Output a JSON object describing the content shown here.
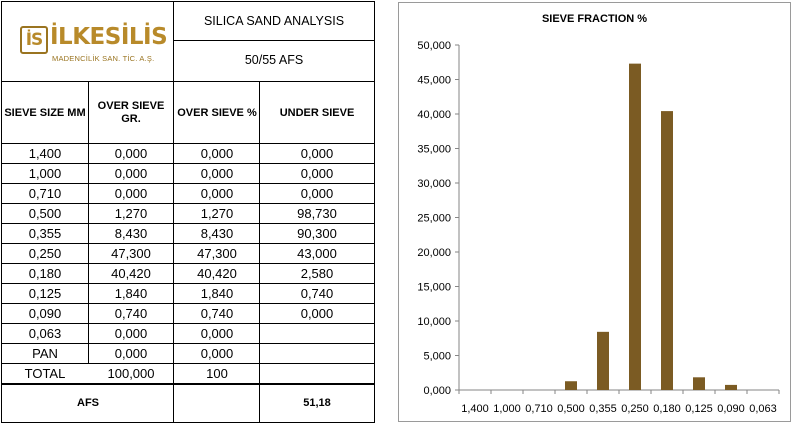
{
  "logo": {
    "badge": "İS",
    "word": "İLKESİLİS",
    "subtitle": "MADENCİLİK SAN. TİC. A.Ş."
  },
  "sheet": {
    "title": "SILICA SAND ANALYSIS",
    "subtitle": "50/55 AFS",
    "headers": [
      "SIEVE SIZE MM",
      "OVER SIEVE GR.",
      "OVER SIEVE %",
      "UNDER SIEVE"
    ],
    "rows": [
      [
        "1,400",
        "0,000",
        "0,000",
        "0,000"
      ],
      [
        "1,000",
        "0,000",
        "0,000",
        "0,000"
      ],
      [
        "0,710",
        "0,000",
        "0,000",
        "0,000"
      ],
      [
        "0,500",
        "1,270",
        "1,270",
        "98,730"
      ],
      [
        "0,355",
        "8,430",
        "8,430",
        "90,300"
      ],
      [
        "0,250",
        "47,300",
        "47,300",
        "43,000"
      ],
      [
        "0,180",
        "40,420",
        "40,420",
        "2,580"
      ],
      [
        "0,125",
        "1,840",
        "1,840",
        "0,740"
      ],
      [
        "0,090",
        "0,740",
        "0,740",
        "0,000"
      ],
      [
        "0,063",
        "0,000",
        "0,000",
        ""
      ],
      [
        "PAN",
        "0,000",
        "0,000",
        ""
      ],
      [
        "TOTAL",
        "100,000",
        "100",
        ""
      ]
    ],
    "afs_label": "AFS",
    "afs_value": "51,18"
  },
  "chart_data": {
    "type": "bar",
    "title": "SIEVE FRACTION %",
    "categories": [
      "1,400",
      "1,000",
      "0,710",
      "0,500",
      "0,355",
      "0,250",
      "0,180",
      "0,125",
      "0,090",
      "0,063"
    ],
    "values": [
      0,
      0,
      0,
      1.27,
      8.43,
      47.3,
      40.42,
      1.84,
      0.74,
      0
    ],
    "ylim": [
      0,
      50
    ],
    "yticks": [
      "0,000",
      "5,000",
      "10,000",
      "15,000",
      "20,000",
      "25,000",
      "30,000",
      "35,000",
      "40,000",
      "45,000",
      "50,000"
    ],
    "grid": false,
    "bar_color": "#7b5b23"
  }
}
